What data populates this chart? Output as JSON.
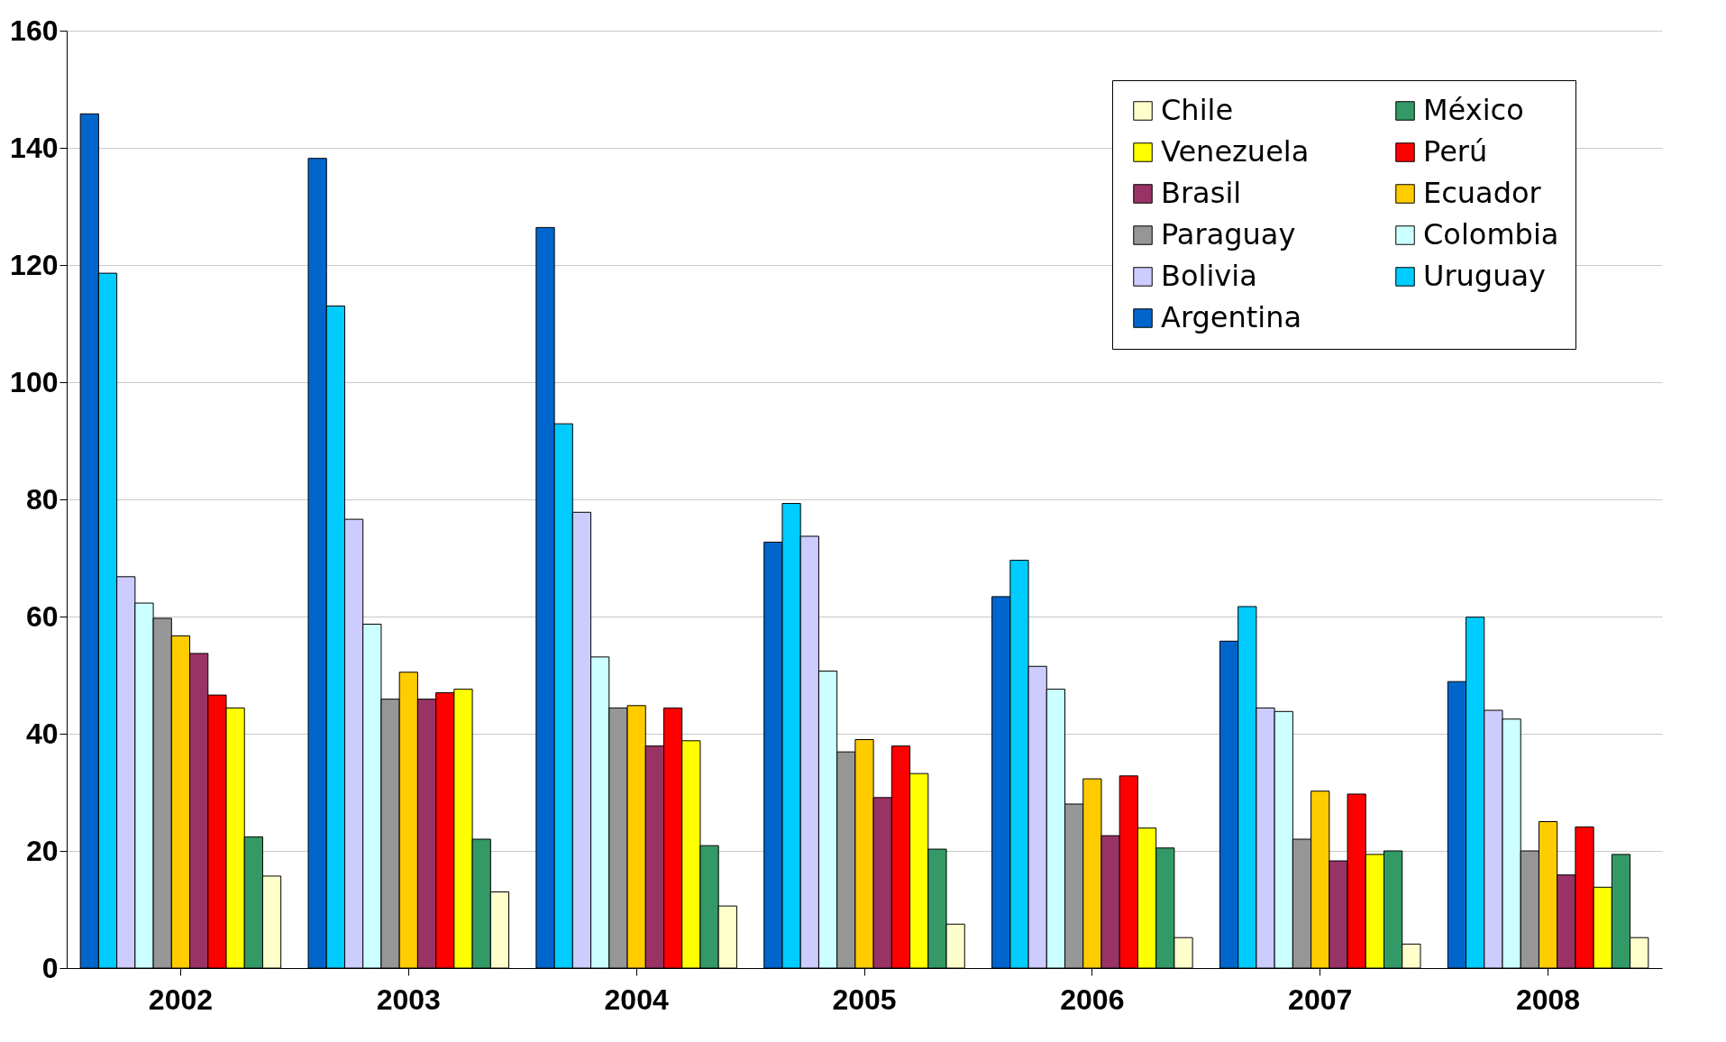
{
  "chart_data": {
    "type": "bar",
    "categories": [
      "2002",
      "2003",
      "2004",
      "2005",
      "2006",
      "2007",
      "2008"
    ],
    "series": [
      {
        "name": "Argentina",
        "color": "#0066cc",
        "values": [
          145.8,
          138.2,
          126.4,
          72.7,
          63.4,
          55.8,
          48.9
        ]
      },
      {
        "name": "Uruguay",
        "color": "#00ccff",
        "values": [
          118.6,
          113,
          92.9,
          79.3,
          69.6,
          61.7,
          59.9
        ]
      },
      {
        "name": "Bolivia",
        "color": "#ccccff",
        "values": [
          66.8,
          76.6,
          77.8,
          73.7,
          51.5,
          44.4,
          44
        ]
      },
      {
        "name": "Colombia",
        "color": "#ccffff",
        "values": [
          62.3,
          58.7,
          53.1,
          50.7,
          47.6,
          43.8,
          42.5
        ]
      },
      {
        "name": "Paraguay",
        "color": "#969696",
        "values": [
          59.7,
          45.9,
          44.4,
          36.9,
          28,
          22,
          20
        ]
      },
      {
        "name": "Ecuador",
        "color": "#ffcc00",
        "values": [
          56.7,
          50.5,
          44.8,
          39,
          32.3,
          30.2,
          25
        ]
      },
      {
        "name": "Brasil",
        "color": "#993366",
        "values": [
          53.7,
          45.9,
          37.9,
          29.1,
          22.6,
          18.3,
          15.9
        ]
      },
      {
        "name": "Perú",
        "color": "#ff0000",
        "values": [
          46.6,
          47,
          44.4,
          37.9,
          32.8,
          29.7,
          24.1
        ]
      },
      {
        "name": "Venezuela",
        "color": "#ffff00",
        "values": [
          44.4,
          47.6,
          38.8,
          33.2,
          23.9,
          19.4,
          13.8
        ]
      },
      {
        "name": "México",
        "color": "#339966",
        "values": [
          22.4,
          22,
          20.9,
          20.3,
          20.5,
          20,
          19.4
        ]
      },
      {
        "name": "Chile",
        "color": "#ffffcc",
        "values": [
          15.7,
          13,
          10.6,
          7.5,
          5.2,
          4.1,
          5.2
        ]
      }
    ],
    "ylim": [
      0,
      160
    ],
    "yticks": [
      0,
      20,
      40,
      60,
      80,
      100,
      120,
      140,
      160
    ],
    "grid": "y",
    "legend": "top right"
  }
}
